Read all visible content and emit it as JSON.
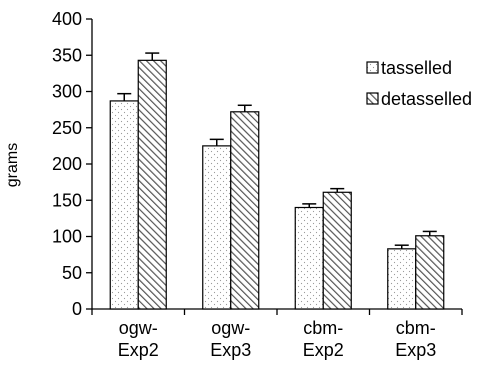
{
  "chart_data": {
    "type": "bar",
    "ylabel": "grams",
    "ylim": [
      0,
      400
    ],
    "yticks": [
      "0",
      "50",
      "100",
      "150",
      "200",
      "250",
      "300",
      "350",
      "400"
    ],
    "categories": [
      [
        "ogw-",
        "Exp2"
      ],
      [
        "ogw-",
        "Exp3"
      ],
      [
        "cbm-",
        "Exp2"
      ],
      [
        "cbm-",
        "Exp3"
      ]
    ],
    "series": [
      {
        "name": "tasselled",
        "pattern": "dots",
        "values": [
          287,
          225,
          140,
          83
        ],
        "errors": [
          10,
          9,
          5,
          5
        ]
      },
      {
        "name": "detasselled",
        "pattern": "hatch",
        "values": [
          343,
          272,
          161,
          101
        ],
        "errors": [
          10,
          9,
          5,
          6
        ]
      }
    ],
    "grid": false,
    "legend_position": "right"
  }
}
